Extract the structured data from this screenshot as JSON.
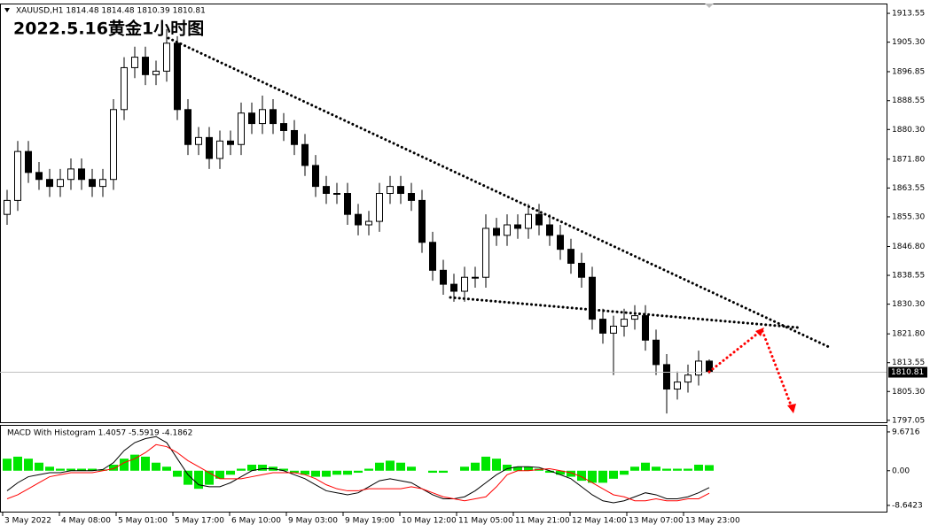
{
  "chart_data": [
    {
      "type": "candlestick",
      "info": "XAUUSD,H1  1814.48 1814.48 1810.39 1810.81",
      "title": "2022.5.16黄金1小时图",
      "x_labels": [
        "3 May 2022",
        "4 May 08:00",
        "5 May 01:00",
        "5 May 17:00",
        "6 May 10:00",
        "9 May 03:00",
        "9 May 19:00",
        "10 May 12:00",
        "11 May 05:00",
        "11 May 21:00",
        "12 May 14:00",
        "13 May 07:00",
        "13 May 23:00"
      ],
      "open": [
        1856,
        1860,
        1874,
        1868,
        1866,
        1864,
        1866,
        1869,
        1866,
        1864,
        1866,
        1886,
        1898,
        1901,
        1896,
        1897,
        1905,
        1886,
        1876,
        1878,
        1872,
        1877,
        1876,
        1885,
        1882,
        1886,
        1882,
        1880,
        1876,
        1870,
        1864,
        1862,
        1862,
        1856,
        1853,
        1854,
        1862,
        1864,
        1862,
        1860,
        1848,
        1840,
        1836,
        1834,
        1838,
        1838,
        1852,
        1850,
        1853,
        1852,
        1856,
        1853,
        1850,
        1846,
        1842,
        1838,
        1826,
        1822,
        1824,
        1826,
        1827,
        1820,
        1813,
        1806,
        1808,
        1810,
        1814
      ],
      "high": [
        1863,
        1877,
        1877,
        1871,
        1869,
        1869,
        1872,
        1872,
        1869,
        1869,
        1889,
        1901,
        1904,
        1904,
        1900,
        1909,
        1907,
        1889,
        1881,
        1881,
        1880,
        1880,
        1888,
        1888,
        1890,
        1889,
        1885,
        1883,
        1879,
        1873,
        1867,
        1865,
        1865,
        1859,
        1857,
        1865,
        1867,
        1867,
        1865,
        1863,
        1851,
        1843,
        1839,
        1841,
        1841,
        1856,
        1855,
        1856,
        1856,
        1859,
        1859,
        1856,
        1853,
        1849,
        1845,
        1841,
        1829,
        1827,
        1829,
        1830,
        1830,
        1823,
        1816,
        1811,
        1813,
        1817,
        1814.48
      ],
      "low": [
        1853,
        1857,
        1865,
        1863,
        1861,
        1861,
        1863,
        1863,
        1861,
        1861,
        1863,
        1883,
        1895,
        1893,
        1893,
        1894,
        1883,
        1873,
        1873,
        1869,
        1869,
        1873,
        1873,
        1879,
        1879,
        1879,
        1877,
        1873,
        1867,
        1861,
        1859,
        1859,
        1853,
        1850,
        1850,
        1851,
        1859,
        1859,
        1857,
        1845,
        1837,
        1833,
        1831,
        1831,
        1835,
        1835,
        1847,
        1847,
        1849,
        1849,
        1850,
        1847,
        1843,
        1839,
        1835,
        1823,
        1819,
        1810,
        1821,
        1823,
        1817,
        1810,
        1799,
        1803,
        1805,
        1807,
        1810.39
      ],
      "close": [
        1860,
        1874,
        1868,
        1866,
        1864,
        1866,
        1869,
        1866,
        1864,
        1866,
        1886,
        1898,
        1901,
        1896,
        1897,
        1905,
        1886,
        1876,
        1878,
        1872,
        1877,
        1876,
        1885,
        1882,
        1886,
        1882,
        1880,
        1876,
        1870,
        1864,
        1862,
        1862,
        1856,
        1853,
        1854,
        1862,
        1864,
        1862,
        1860,
        1848,
        1840,
        1836,
        1834,
        1838,
        1838,
        1852,
        1850,
        1853,
        1852,
        1856,
        1853,
        1850,
        1846,
        1842,
        1838,
        1826,
        1822,
        1824,
        1826,
        1827,
        1820,
        1813,
        1806,
        1808,
        1810,
        1814,
        1810.81
      ],
      "up_color": "#ffffff",
      "down_color": "#000000",
      "edge_color": "#000000",
      "ylim": [
        1796.5,
        1916.1
      ],
      "yticks": [
        1913.55,
        {
          "value": 1905.3,
          "label": "1905.30"
        },
        1896.85,
        1888.55,
        {
          "value": 1880.3,
          "label": "1880.30"
        },
        {
          "value": 1871.8,
          "label": "1871.80"
        },
        1863.55,
        {
          "value": 1855.3,
          "label": "1855.30"
        },
        {
          "value": 1846.8,
          "label": "1846.80"
        },
        1838.55,
        {
          "value": 1830.3,
          "label": "1830.30"
        },
        {
          "value": 1821.8,
          "label": "1821.80"
        },
        1813.55,
        {
          "value": 1805.3,
          "label": "1805.30"
        },
        1797.05
      ]
    },
    {
      "type": "macd",
      "title": "MACD With Histogram 1.4057 -5.5919 -4.1862",
      "series": [
        {
          "kind": "histogram",
          "color": "#00e600",
          "values": [
            3,
            3.5,
            3,
            2,
            1,
            0.5,
            0.5,
            0.5,
            0.5,
            0.3,
            1.5,
            3,
            4,
            3.5,
            2,
            1,
            -1.5,
            -3.5,
            -4.5,
            -3.5,
            -2,
            -1,
            0.5,
            1.5,
            1.5,
            1,
            0.5,
            -0.5,
            -1,
            -1.5,
            -1.5,
            -1,
            -1,
            -0.5,
            0.5,
            2,
            2.5,
            2,
            1,
            0,
            -0.5,
            -0.5,
            0,
            1,
            2,
            3.5,
            3,
            1.5,
            1,
            1,
            0.5,
            -0.5,
            -1,
            -1.5,
            -2.5,
            -3,
            -3,
            -2,
            -1,
            1,
            2,
            1,
            0.5,
            0.5,
            0.5,
            1.5,
            1.4
          ]
        },
        {
          "kind": "line",
          "color": "#000000",
          "values": [
            -5,
            -3,
            -1.5,
            -1,
            -0.5,
            -0.5,
            0,
            0,
            0,
            0.3,
            2,
            5,
            7,
            8,
            8.5,
            7,
            3,
            -1,
            -3.5,
            -4,
            -4,
            -3,
            -1.5,
            0,
            0.5,
            0.5,
            0,
            -1,
            -2,
            -3.5,
            -5,
            -5.5,
            -6,
            -5.5,
            -4,
            -2.5,
            -2,
            -2.5,
            -3,
            -4.5,
            -6,
            -7,
            -7,
            -6.5,
            -5,
            -3,
            -1,
            0.5,
            1,
            1,
            0.8,
            0,
            -1,
            -2,
            -4,
            -6,
            -7.5,
            -8,
            -7.5,
            -6.5,
            -5.5,
            -6,
            -7,
            -7,
            -6.5,
            -5.5,
            -4.2
          ]
        },
        {
          "kind": "line",
          "color": "#ff0000",
          "values": [
            -7,
            -6,
            -4.5,
            -3,
            -1.5,
            -1,
            -0.5,
            -0.5,
            -0.5,
            0,
            0.5,
            2,
            3,
            4.5,
            6.5,
            6,
            4.5,
            2.5,
            1,
            -0.5,
            -2,
            -2,
            -2,
            -1.5,
            -1,
            -0.5,
            -0.5,
            -0.5,
            -1,
            -2,
            -3.5,
            -4.5,
            -5,
            -5,
            -4.5,
            -4.5,
            -4.5,
            -4.5,
            -4,
            -4.5,
            -5.5,
            -6.5,
            -7,
            -7.5,
            -7,
            -6.5,
            -4,
            -1,
            0,
            0,
            0.3,
            0.5,
            0,
            -0.5,
            -1.5,
            -3,
            -4.5,
            -6,
            -6.5,
            -7.5,
            -7.5,
            -7,
            -7.5,
            -7.5,
            -7,
            -7,
            -5.6
          ]
        }
      ],
      "ylim": [
        -10.2,
        11.2
      ],
      "yticks": [
        9.6716,
        {
          "value": 0,
          "label": "0.00"
        },
        -8.6423
      ]
    }
  ]
}
